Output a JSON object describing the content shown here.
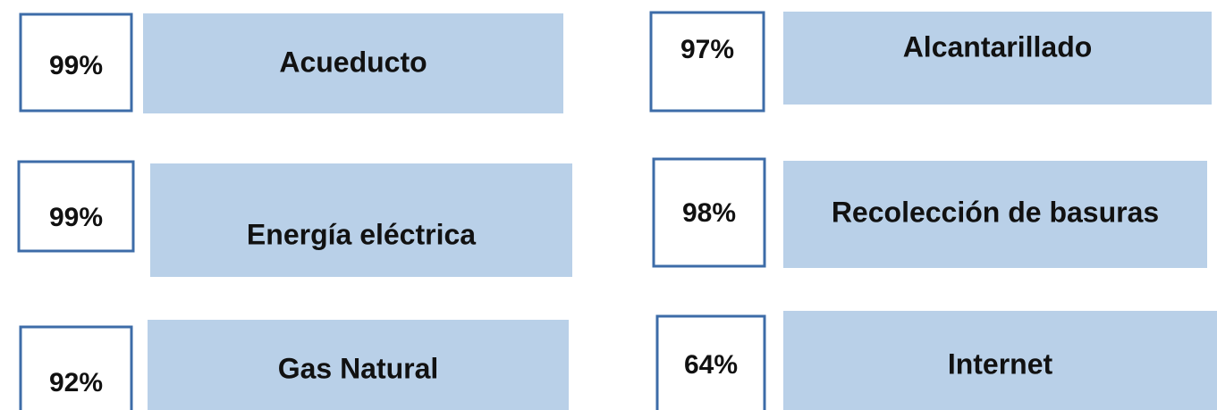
{
  "items": [
    {
      "value": "99%",
      "label": "Acueducto"
    },
    {
      "value": "97%",
      "label": "Alcantarillado"
    },
    {
      "value": "99%",
      "label": "Energía eléctrica"
    },
    {
      "value": "98%",
      "label": "Recolección de basuras"
    },
    {
      "value": "92%",
      "label": "Gas Natural"
    },
    {
      "value": "64%",
      "label": "Internet"
    }
  ]
}
